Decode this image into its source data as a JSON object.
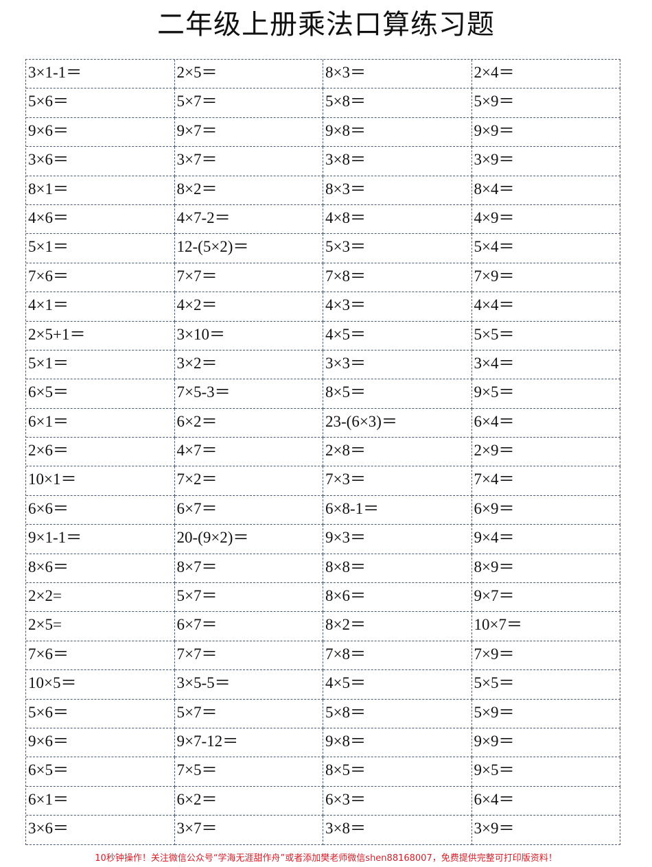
{
  "title": "二年级上册乘法口算练习题",
  "rows": [
    [
      "3×1-1＝",
      "2×5＝",
      "8×3＝",
      "2×4＝"
    ],
    [
      "5×6＝",
      "5×7＝",
      "5×8＝",
      "5×9＝"
    ],
    [
      "9×6＝",
      "9×7＝",
      "9×8＝",
      "9×9＝"
    ],
    [
      "3×6＝",
      "3×7＝",
      "3×8＝",
      "3×9＝"
    ],
    [
      "8×1＝",
      "8×2＝",
      "8×3＝",
      "8×4＝"
    ],
    [
      "4×6＝",
      "4×7-2＝",
      "4×8＝",
      "4×9＝"
    ],
    [
      "5×1＝",
      "12-(5×2)＝",
      "5×3＝",
      "5×4＝"
    ],
    [
      "7×6＝",
      "7×7＝",
      "7×8＝",
      "7×9＝"
    ],
    [
      "4×1＝",
      "4×2＝",
      "4×3＝",
      "4×4＝"
    ],
    [
      "2×5+1＝",
      "3×10＝",
      "4×5＝",
      "5×5＝"
    ],
    [
      "5×1＝",
      "3×2＝",
      "3×3＝",
      "3×4＝"
    ],
    [
      "6×5＝",
      "7×5-3＝",
      "8×5＝",
      "9×5＝"
    ],
    [
      "6×1＝",
      "6×2＝",
      "23-(6×3)＝",
      "6×4＝"
    ],
    [
      "2×6＝",
      "4×7＝",
      "2×8＝",
      "2×9＝"
    ],
    [
      "10×1＝",
      "7×2＝",
      "7×3＝",
      "7×4＝"
    ],
    [
      "6×6＝",
      "6×7＝",
      "6×8-1＝",
      "6×9＝"
    ],
    [
      "9×1-1＝",
      "20-(9×2)＝",
      "9×3＝",
      "9×4＝"
    ],
    [
      "8×6＝",
      "8×7＝",
      "8×8＝",
      "8×9＝"
    ],
    [
      "2×2=",
      "5×7＝",
      "8×6＝",
      "9×7＝"
    ],
    [
      "2×5=",
      "6×7＝",
      "8×2＝",
      "10×7＝"
    ],
    [
      "7×6＝",
      "7×7＝",
      "7×8＝",
      "7×9＝"
    ],
    [
      "10×5＝",
      "3×5-5＝",
      "4×5＝",
      "5×5＝"
    ],
    [
      "5×6＝",
      "5×7＝",
      "5×8＝",
      "5×9＝"
    ],
    [
      "9×6＝",
      "9×7-12＝",
      "9×8＝",
      "9×9＝"
    ],
    [
      "6×5＝",
      "7×5＝",
      "8×5＝",
      "9×5＝"
    ],
    [
      "6×1＝",
      "6×2＝",
      "6×3＝",
      "6×4＝"
    ],
    [
      "3×6＝",
      "3×7＝",
      "3×8＝",
      "3×9＝"
    ]
  ],
  "footer": "10秒钟操作！关注微信公众号“学海无涯甜作舟”或者添加樊老师微信shen88168007，免费提供完整可打印版资料！",
  "colors": {
    "footer_text": "#d0202a",
    "grid_line": "#4a5a70"
  }
}
